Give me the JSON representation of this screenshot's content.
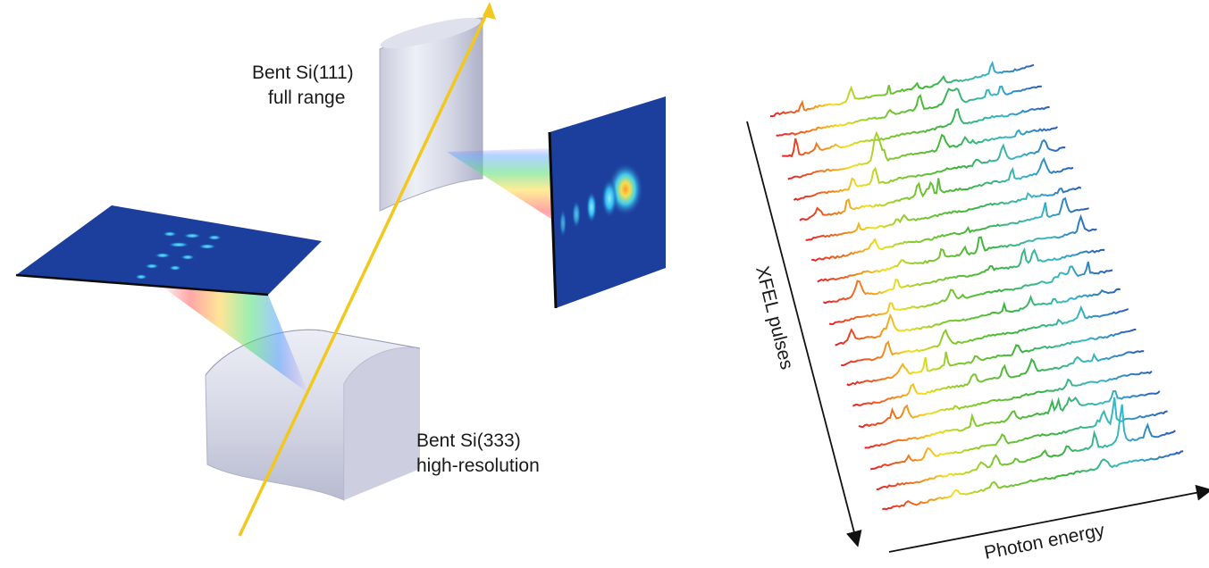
{
  "labels": {
    "si111_line1": "Bent Si(111)",
    "si111_line2": "full range",
    "si333_line1": "Bent Si(333)",
    "si333_line2": "high-resolution"
  },
  "axes": {
    "pulses_label": "XFEL pulses",
    "energy_label": "Photon energy"
  },
  "colors": {
    "beam": "#f2c81e",
    "detector": "#1c3f9e",
    "crystal": "#d7d9e6"
  },
  "spectra": {
    "count": 20
  }
}
